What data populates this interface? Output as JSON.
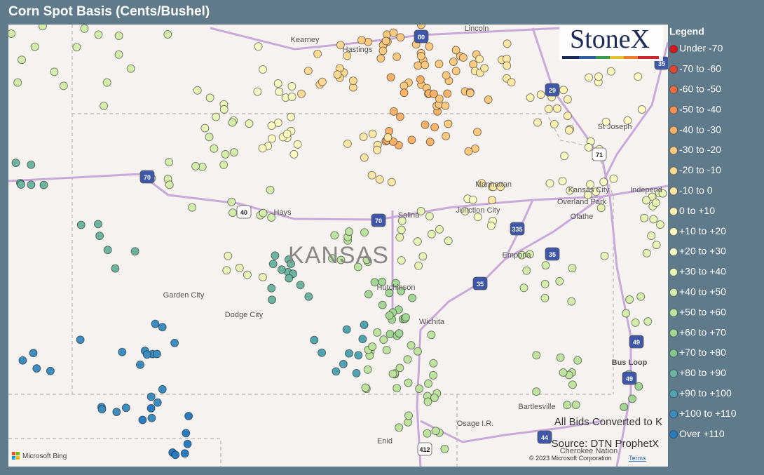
{
  "header": {
    "title": "Corn Spot Basis (Cents/Bushel)"
  },
  "logo": "StoneX",
  "legend": {
    "title": "Legend",
    "items": [
      {
        "label": "Under -70",
        "color": "#d7191c"
      },
      {
        "label": "-70 to -60",
        "color": "#e4472f"
      },
      {
        "label": "-60 to -50",
        "color": "#ec6d3f"
      },
      {
        "label": "-50 to -40",
        "color": "#f39153"
      },
      {
        "label": "-40 to -30",
        "color": "#f8b26a"
      },
      {
        "label": "-30 to -20",
        "color": "#fbc97f"
      },
      {
        "label": "-20 to -10",
        "color": "#fdd993"
      },
      {
        "label": "-10 to 0",
        "color": "#fee6a4"
      },
      {
        "label": "0 to +10",
        "color": "#fff1b3"
      },
      {
        "label": "+10 to +20",
        "color": "#fffac2"
      },
      {
        "label": "+20 to +30",
        "color": "#f7fbc4"
      },
      {
        "label": "+30 to +40",
        "color": "#e6f4b6"
      },
      {
        "label": "+40 to +50",
        "color": "#d3edaa"
      },
      {
        "label": "+50 to +60",
        "color": "#bde39f"
      },
      {
        "label": "+60 to +70",
        "color": "#a3d694"
      },
      {
        "label": "+70 to +80",
        "color": "#86c78e"
      },
      {
        "label": "+80 to +90",
        "color": "#6db4a0"
      },
      {
        "label": "+90 to +100",
        "color": "#52a3b0"
      },
      {
        "label": "+100 to +110",
        "color": "#3d8cbf"
      },
      {
        "label": "Over +110",
        "color": "#2b7bbf"
      }
    ]
  },
  "map": {
    "state_label": "KANSAS",
    "places": [
      "Kearney",
      "Hastings",
      "Lincoln",
      "St Joseph",
      "Manhattan",
      "Kansas City",
      "Independ",
      "Overland Park",
      "Olathe",
      "Hays",
      "Salina",
      "Junction City",
      "Emporia",
      "Garden City",
      "Dodge City",
      "Hutchinson",
      "Wichita",
      "Bus Loop",
      "Bartlesville",
      "Osage I.R.",
      "Enid",
      "Cherokee Nation"
    ],
    "shields": [
      "80",
      "29",
      "35",
      "71",
      "70",
      "40",
      "70",
      "335",
      "35",
      "35",
      "49",
      "49",
      "44",
      "412"
    ]
  },
  "notes": [
    "All Bids Converted to K",
    "Source: DTN ProphetX"
  ],
  "footer": {
    "bing": "Microsoft Bing",
    "copyright": "© 2023 Microsoft Corporation",
    "terms": "Terms"
  }
}
